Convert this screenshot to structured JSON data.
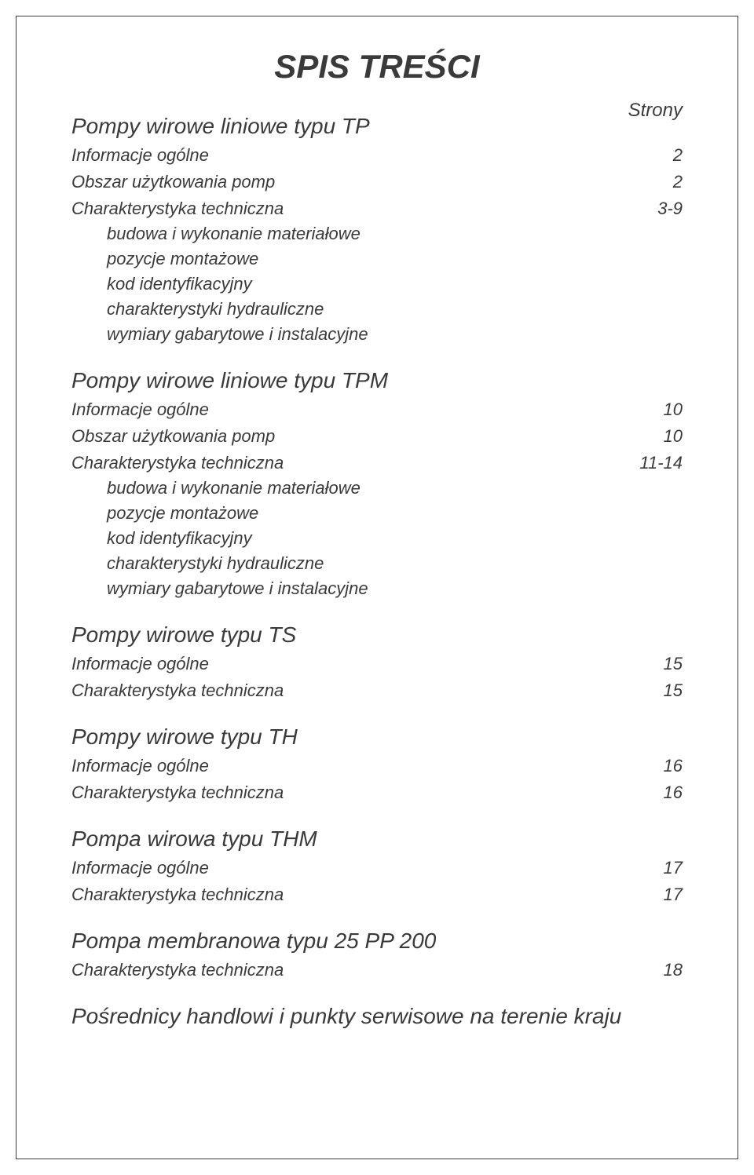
{
  "title": "SPIS TREŚCI",
  "pagesHeader": "Strony",
  "sections": [
    {
      "heading": "Pompy wirowe liniowe typu TP",
      "rows": [
        {
          "label": "Informacje ogólne",
          "page": "2"
        },
        {
          "label": "Obszar użytkowania pomp",
          "page": "2"
        },
        {
          "label": "Charakterystyka techniczna",
          "page": "3-9"
        }
      ],
      "subs": [
        "budowa i wykonanie materiałowe",
        "pozycje montażowe",
        "kod identyfikacyjny",
        "charakterystyki hydrauliczne",
        "wymiary gabarytowe i instalacyjne"
      ]
    },
    {
      "heading": "Pompy wirowe liniowe typu TPM",
      "rows": [
        {
          "label": "Informacje ogólne",
          "page": "10"
        },
        {
          "label": "Obszar użytkowania pomp",
          "page": "10"
        },
        {
          "label": "Charakterystyka techniczna",
          "page": "11-14"
        }
      ],
      "subs": [
        "budowa i wykonanie materiałowe",
        "pozycje montażowe",
        "kod identyfikacyjny",
        "charakterystyki hydrauliczne",
        "wymiary gabarytowe i instalacyjne"
      ]
    },
    {
      "heading": "Pompy wirowe typu TS",
      "rows": [
        {
          "label": "Informacje ogólne",
          "page": "15"
        },
        {
          "label": "Charakterystyka techniczna",
          "page": "15"
        }
      ],
      "subs": []
    },
    {
      "heading": "Pompy wirowe typu TH",
      "rows": [
        {
          "label": "Informacje ogólne",
          "page": "16"
        },
        {
          "label": "Charakterystyka techniczna",
          "page": "16"
        }
      ],
      "subs": []
    },
    {
      "heading": "Pompa wirowa typu THM",
      "rows": [
        {
          "label": "Informacje ogólne",
          "page": "17"
        },
        {
          "label": "Charakterystyka techniczna",
          "page": "17"
        }
      ],
      "subs": []
    },
    {
      "heading": "Pompa membranowa typu 25 PP 200",
      "rows": [
        {
          "label": "Charakterystyka techniczna",
          "page": "18"
        }
      ],
      "subs": []
    },
    {
      "heading": "Pośrednicy handlowi i punkty serwisowe na terenie kraju",
      "rows": [],
      "subs": []
    }
  ]
}
